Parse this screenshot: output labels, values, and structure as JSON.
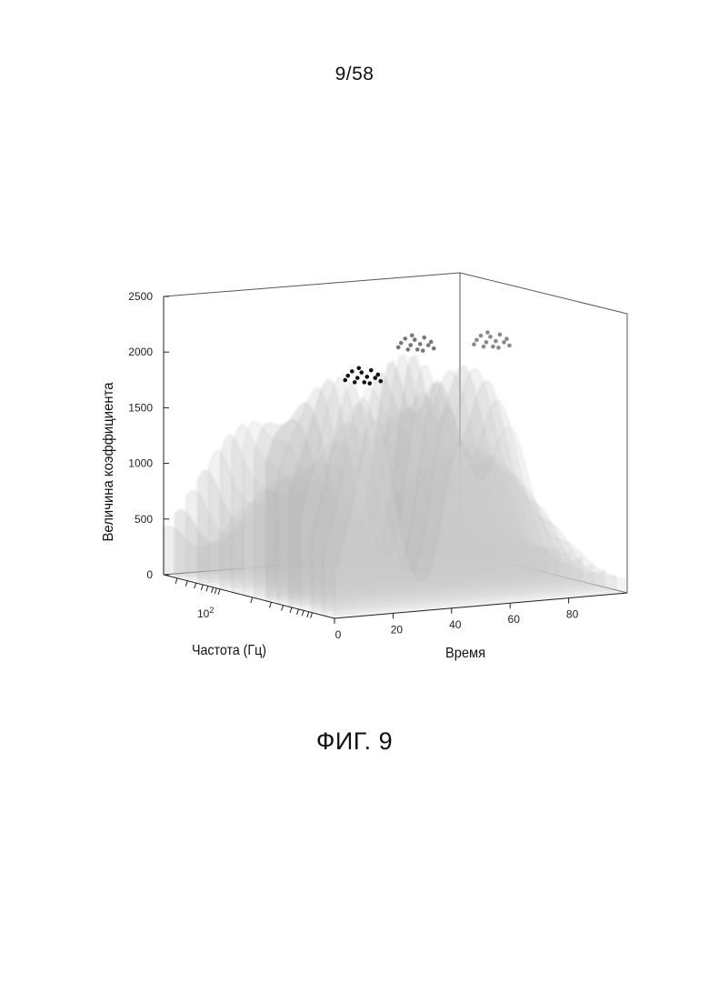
{
  "page": {
    "number": "9/58",
    "caption": "ФИГ. 9"
  },
  "chart_data": {
    "type": "surface3d",
    "title": "",
    "zlabel": "Величина коэффициента",
    "xlabel": "Время",
    "ylabel": "Частота (Гц)",
    "z_ticks": [
      "0",
      "500",
      "1000",
      "1500",
      "2000",
      "2500"
    ],
    "z_tick_values": [
      0,
      500,
      1000,
      1500,
      2000,
      2500
    ],
    "zlim": [
      0,
      2500
    ],
    "x_ticks": [
      "0",
      "20",
      "40",
      "60",
      "80"
    ],
    "x_tick_values": [
      0,
      20,
      40,
      60,
      80
    ],
    "xlim": [
      0,
      100
    ],
    "y_tick_base": "10",
    "y_tick_exponent": "2",
    "y_scale": "log",
    "grid": false,
    "surface_color": "#b8b8b8",
    "peaks": [
      {
        "time": 18,
        "freq_pos": 0.15,
        "value": 2080,
        "marker_color": "#111111"
      },
      {
        "time": 42,
        "freq_pos": 0.25,
        "value": 2280,
        "marker_color": "#777777"
      },
      {
        "time": 62,
        "freq_pos": 0.15,
        "value": 2300,
        "marker_color": "#888888"
      }
    ]
  }
}
